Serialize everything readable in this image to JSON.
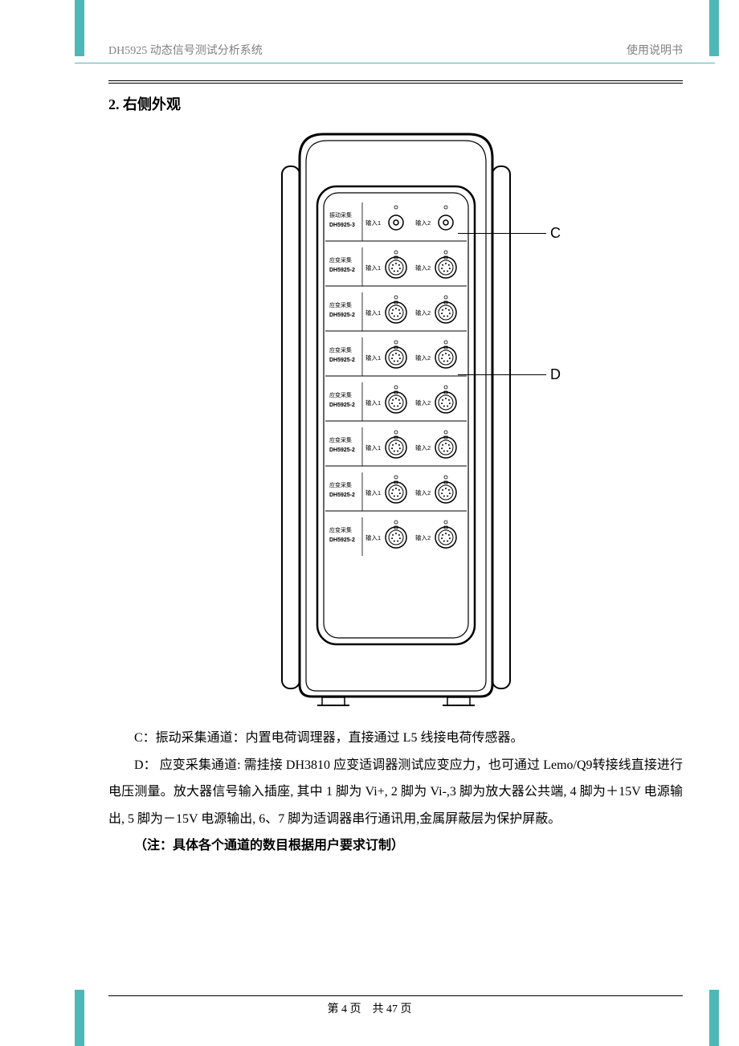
{
  "header": {
    "left": "DH5925 动态信号测试分析系统",
    "right": "使用说明书"
  },
  "section": {
    "number": "2.",
    "title": "右侧外观"
  },
  "callouts": {
    "c": "C",
    "d": "D"
  },
  "device": {
    "slots": [
      {
        "line1": "振动采集",
        "line2": "DH5925-3",
        "type": "bnc"
      },
      {
        "line1": "应变采集",
        "line2": "DH5925-2",
        "type": "lemo"
      },
      {
        "line1": "应变采集",
        "line2": "DH5925-2",
        "type": "lemo"
      },
      {
        "line1": "应变采集",
        "line2": "DH5925-2",
        "type": "lemo"
      },
      {
        "line1": "应变采集",
        "line2": "DH5925-2",
        "type": "lemo"
      },
      {
        "line1": "应变采集",
        "line2": "DH5925-2",
        "type": "lemo"
      },
      {
        "line1": "应变采集",
        "line2": "DH5925-2",
        "type": "lemo"
      },
      {
        "line1": "应变采集",
        "line2": "DH5925-2",
        "type": "lemo"
      }
    ],
    "port1": "输入1",
    "port2": "输入2"
  },
  "body": {
    "p1": "C：振动采集通道：内置电荷调理器，直接通过 L5 线接电荷传感器。",
    "p2": "D： 应变采集通道: 需挂接 DH3810 应变适调器测试应变应力，也可通过 Lemo/Q9转接线直接进行电压测量。放大器信号输入插座, 其中 1 脚为 Vi+, 2 脚为 Vi-,3 脚为放大器公共端, 4 脚为＋15V 电源输出, 5 脚为－15V 电源输出, 6、7 脚为适调器串行通讯用,金属屏蔽层为保护屏蔽。",
    "note": "（注：具体各个通道的数目根据用户要求订制）"
  },
  "footer": {
    "text": "第 4 页　共 47 页"
  },
  "colors": {
    "accent": "#4eb8b8",
    "text_muted": "#808080"
  }
}
